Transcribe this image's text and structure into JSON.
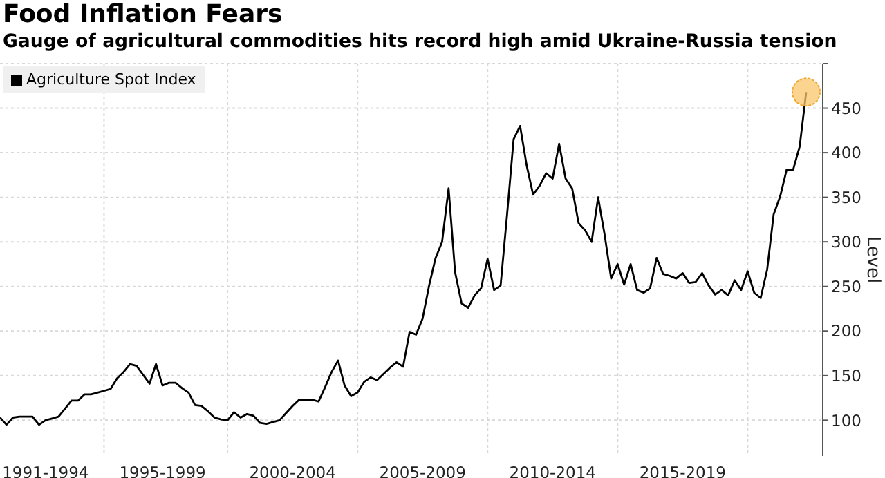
{
  "chart_data": {
    "type": "line",
    "title": "Food Inflation Fears",
    "subtitle": "Gauge of agricultural commodities hits record high amid Ukraine-Russia tension",
    "ylabel": "Level",
    "categories": [
      null,
      null,
      null,
      null,
      null,
      null,
      null,
      "1991-1994",
      null,
      null,
      null,
      null,
      null,
      null,
      null,
      null,
      null,
      null,
      null,
      null,
      null,
      null,
      null,
      null,
      null,
      "1995-1999",
      null,
      null,
      null,
      null,
      null,
      null,
      null,
      null,
      null,
      null,
      null,
      null,
      null,
      null,
      null,
      null,
      null,
      null,
      null,
      "2000-2004",
      null,
      null,
      null,
      null,
      null,
      null,
      null,
      null,
      null,
      null,
      null,
      null,
      null,
      null,
      null,
      null,
      null,
      null,
      null,
      "2005-2009",
      null,
      null,
      null,
      null,
      null,
      null,
      null,
      null,
      null,
      null,
      null,
      null,
      null,
      null,
      null,
      null,
      null,
      null,
      null,
      "2010-2014",
      null,
      null,
      null,
      null,
      null,
      null,
      null,
      null,
      null,
      null,
      null,
      null,
      null,
      null,
      null,
      null,
      null,
      null,
      null,
      "2015-2019",
      null,
      null,
      null,
      null,
      null,
      null,
      null,
      null,
      null,
      null,
      null,
      null,
      null,
      null,
      null,
      null,
      null,
      null,
      null
    ],
    "ylim": [
      60,
      500
    ],
    "yticks": [
      100,
      150,
      200,
      250,
      300,
      350,
      400,
      450,
      {
        "value": 500,
        "label": null
      }
    ],
    "grid": true,
    "legend": "top left",
    "marker": "none",
    "line_style": "solid",
    "series": [
      {
        "name": "Agriculture Spot Index",
        "color": "#000000",
        "values": [
          103,
          95,
          103,
          104,
          104,
          104,
          95,
          100,
          102,
          104,
          113,
          122,
          122,
          129,
          129,
          131,
          133,
          135,
          147,
          154,
          163,
          161,
          151,
          141,
          163,
          139,
          142,
          142,
          136,
          131,
          117,
          116,
          110,
          103,
          101,
          100,
          109,
          103,
          107,
          105,
          97,
          96,
          98,
          100,
          108,
          116,
          123,
          123,
          123,
          121,
          137,
          154,
          167,
          139,
          127,
          131,
          143,
          148,
          145,
          152,
          159,
          165,
          160,
          199,
          196,
          214,
          251,
          282,
          300,
          360,
          266,
          231,
          226,
          240,
          248,
          281,
          246,
          251,
          331,
          415,
          430,
          386,
          353,
          363,
          377,
          371,
          410,
          371,
          360,
          321,
          313,
          300,
          350,
          308,
          259,
          275,
          252,
          275,
          246,
          243,
          248,
          282,
          264,
          262,
          259,
          265,
          254,
          255,
          265,
          251,
          241,
          246,
          240,
          257,
          246,
          267,
          243,
          237,
          269,
          331,
          351,
          381,
          381,
          407,
          468
        ]
      }
    ]
  }
}
